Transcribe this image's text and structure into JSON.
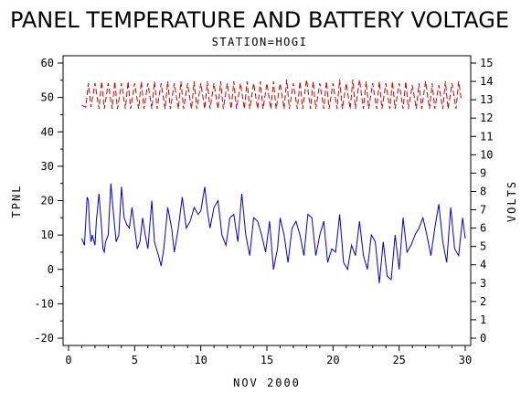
{
  "chart_data": {
    "type": "line",
    "title": "PANEL TEMPERATURE AND BATTERY VOLTAGE",
    "subtitle": "STATION=HOGI",
    "xlabel": "NOV 2000",
    "ylabel_left": "TPNL",
    "ylabel_right": "VOLTS",
    "xlim": [
      0,
      30
    ],
    "ylim_left": [
      -20,
      60
    ],
    "ylim_right": [
      0,
      15
    ],
    "x_ticks": [
      "0",
      "5",
      "10",
      "15",
      "20",
      "25",
      "30"
    ],
    "y_left_ticks": [
      "-20",
      "-10",
      "0",
      "10",
      "20",
      "30",
      "40",
      "50",
      "60"
    ],
    "y_right_ticks": [
      "0",
      "1",
      "2",
      "3",
      "4",
      "5",
      "6",
      "7",
      "8",
      "9",
      "10",
      "11",
      "12",
      "13",
      "14",
      "15"
    ],
    "grid": false,
    "series": [
      {
        "name": "TPNL",
        "axis": "left",
        "color": "#0000cc",
        "style": "solid",
        "x": [
          1.0,
          1.2,
          1.4,
          1.5,
          1.6,
          1.7,
          1.8,
          2.0,
          2.1,
          2.3,
          2.5,
          2.6,
          2.7,
          2.8,
          3.0,
          3.2,
          3.4,
          3.6,
          3.8,
          4.0,
          4.2,
          4.4,
          4.6,
          4.8,
          5.0,
          5.2,
          5.4,
          5.6,
          5.8,
          6.0,
          6.3,
          6.5,
          6.8,
          7.0,
          7.2,
          7.5,
          7.8,
          8.0,
          8.3,
          8.6,
          8.9,
          9.2,
          9.5,
          9.8,
          10.0,
          10.3,
          10.5,
          10.7,
          11.0,
          11.3,
          11.6,
          11.9,
          12.2,
          12.5,
          12.8,
          13.1,
          13.4,
          13.7,
          14.0,
          14.3,
          14.6,
          14.9,
          15.2,
          15.5,
          15.8,
          16.0,
          16.3,
          16.6,
          16.9,
          17.2,
          17.5,
          17.8,
          18.1,
          18.4,
          18.7,
          19.0,
          19.3,
          19.6,
          19.9,
          20.2,
          20.5,
          20.8,
          21.1,
          21.4,
          21.7,
          22.0,
          22.3,
          22.6,
          22.9,
          23.2,
          23.5,
          23.8,
          24.1,
          24.4,
          24.7,
          25.0,
          25.3,
          25.6,
          25.9,
          26.2,
          26.5,
          26.8,
          27.1,
          27.4,
          27.7,
          28.0,
          28.3,
          28.6,
          28.9,
          29.2,
          29.5,
          29.8,
          30.0
        ],
        "y": [
          9,
          7,
          21,
          20,
          12,
          8,
          10,
          7,
          14,
          22,
          12,
          6,
          5,
          8,
          10,
          25,
          16,
          8,
          10,
          24,
          15,
          13,
          12,
          18,
          12,
          6,
          8,
          15,
          10,
          6,
          20,
          8,
          4,
          1,
          6,
          18,
          12,
          5,
          12,
          21,
          12,
          14,
          18,
          16,
          17,
          24,
          17,
          12,
          18,
          20,
          10,
          7,
          15,
          16,
          8,
          22,
          10,
          4,
          15,
          14,
          10,
          5,
          14,
          0,
          6,
          15,
          10,
          2,
          12,
          14,
          10,
          4,
          16,
          15,
          4,
          10,
          14,
          2,
          6,
          5,
          16,
          2,
          0,
          7,
          4,
          14,
          4,
          0,
          10,
          8,
          -4,
          8,
          -2,
          -3,
          10,
          0,
          15,
          5,
          7,
          10,
          12,
          15,
          10,
          4,
          12,
          19,
          8,
          2,
          18,
          6,
          4,
          15,
          9
        ]
      },
      {
        "name": "VOLTS",
        "axis": "right",
        "color": "#cc0000",
        "style": "dashed",
        "x": [
          1.0,
          1.3,
          1.5,
          1.7,
          2.0,
          2.3,
          2.5,
          2.7,
          3.0,
          3.3,
          3.5,
          3.7,
          4.0,
          4.3,
          4.5,
          4.7,
          5.0,
          5.3,
          5.5,
          5.7,
          6.0,
          6.3,
          6.5,
          6.7,
          7.0,
          7.3,
          7.5,
          7.7,
          8.0,
          8.3,
          8.5,
          8.7,
          9.0,
          9.3,
          9.5,
          9.7,
          10.0,
          10.3,
          10.5,
          10.7,
          11.0,
          11.3,
          11.5,
          11.7,
          12.0,
          12.3,
          12.5,
          12.7,
          13.0,
          13.3,
          13.5,
          13.7,
          14.0,
          14.3,
          14.5,
          14.7,
          15.0,
          15.3,
          15.5,
          15.7,
          16.0,
          16.3,
          16.5,
          16.7,
          17.0,
          17.3,
          17.5,
          17.7,
          18.0,
          18.3,
          18.5,
          18.7,
          19.0,
          19.3,
          19.5,
          19.7,
          20.0,
          20.3,
          20.5,
          20.7,
          21.0,
          21.3,
          21.5,
          21.7,
          22.0,
          22.3,
          22.5,
          22.7,
          23.0,
          23.3,
          23.5,
          23.7,
          24.0,
          24.3,
          24.5,
          24.7,
          25.0,
          25.3,
          25.5,
          25.7,
          26.0,
          26.3,
          26.5,
          26.7,
          27.0,
          27.3,
          27.5,
          27.7,
          28.0,
          28.3,
          28.5,
          28.7,
          29.0,
          29.3,
          29.5,
          29.7
        ],
        "y": [
          12.7,
          12.6,
          13.9,
          12.6,
          13.9,
          12.5,
          14.0,
          12.5,
          13.9,
          12.5,
          14.0,
          12.5,
          13.9,
          12.5,
          14.0,
          12.5,
          13.9,
          12.5,
          14.0,
          12.5,
          13.9,
          12.5,
          14.0,
          12.5,
          13.9,
          12.5,
          14.0,
          12.5,
          13.9,
          12.5,
          14.0,
          12.5,
          13.9,
          12.5,
          14.0,
          12.5,
          13.9,
          12.5,
          14.0,
          12.5,
          13.9,
          12.5,
          14.0,
          12.5,
          13.9,
          12.5,
          14.0,
          12.5,
          13.9,
          12.5,
          14.0,
          12.5,
          13.9,
          12.5,
          14.0,
          12.5,
          13.9,
          12.5,
          14.0,
          12.5,
          13.9,
          12.5,
          14.1,
          12.5,
          13.9,
          12.5,
          14.0,
          12.5,
          14.1,
          12.5,
          14.0,
          12.5,
          13.9,
          12.5,
          14.0,
          12.5,
          13.9,
          12.5,
          14.1,
          12.5,
          13.9,
          12.5,
          14.1,
          12.5,
          14.1,
          12.5,
          14.0,
          12.5,
          13.9,
          12.5,
          14.0,
          12.5,
          13.9,
          12.5,
          14.0,
          12.5,
          13.9,
          12.5,
          14.0,
          12.5,
          13.8,
          12.5,
          13.9,
          12.5,
          14.0,
          12.5,
          13.9,
          12.5,
          13.8,
          12.5,
          14.0,
          12.5,
          13.9,
          12.5,
          14.0,
          13.0
        ]
      }
    ]
  }
}
